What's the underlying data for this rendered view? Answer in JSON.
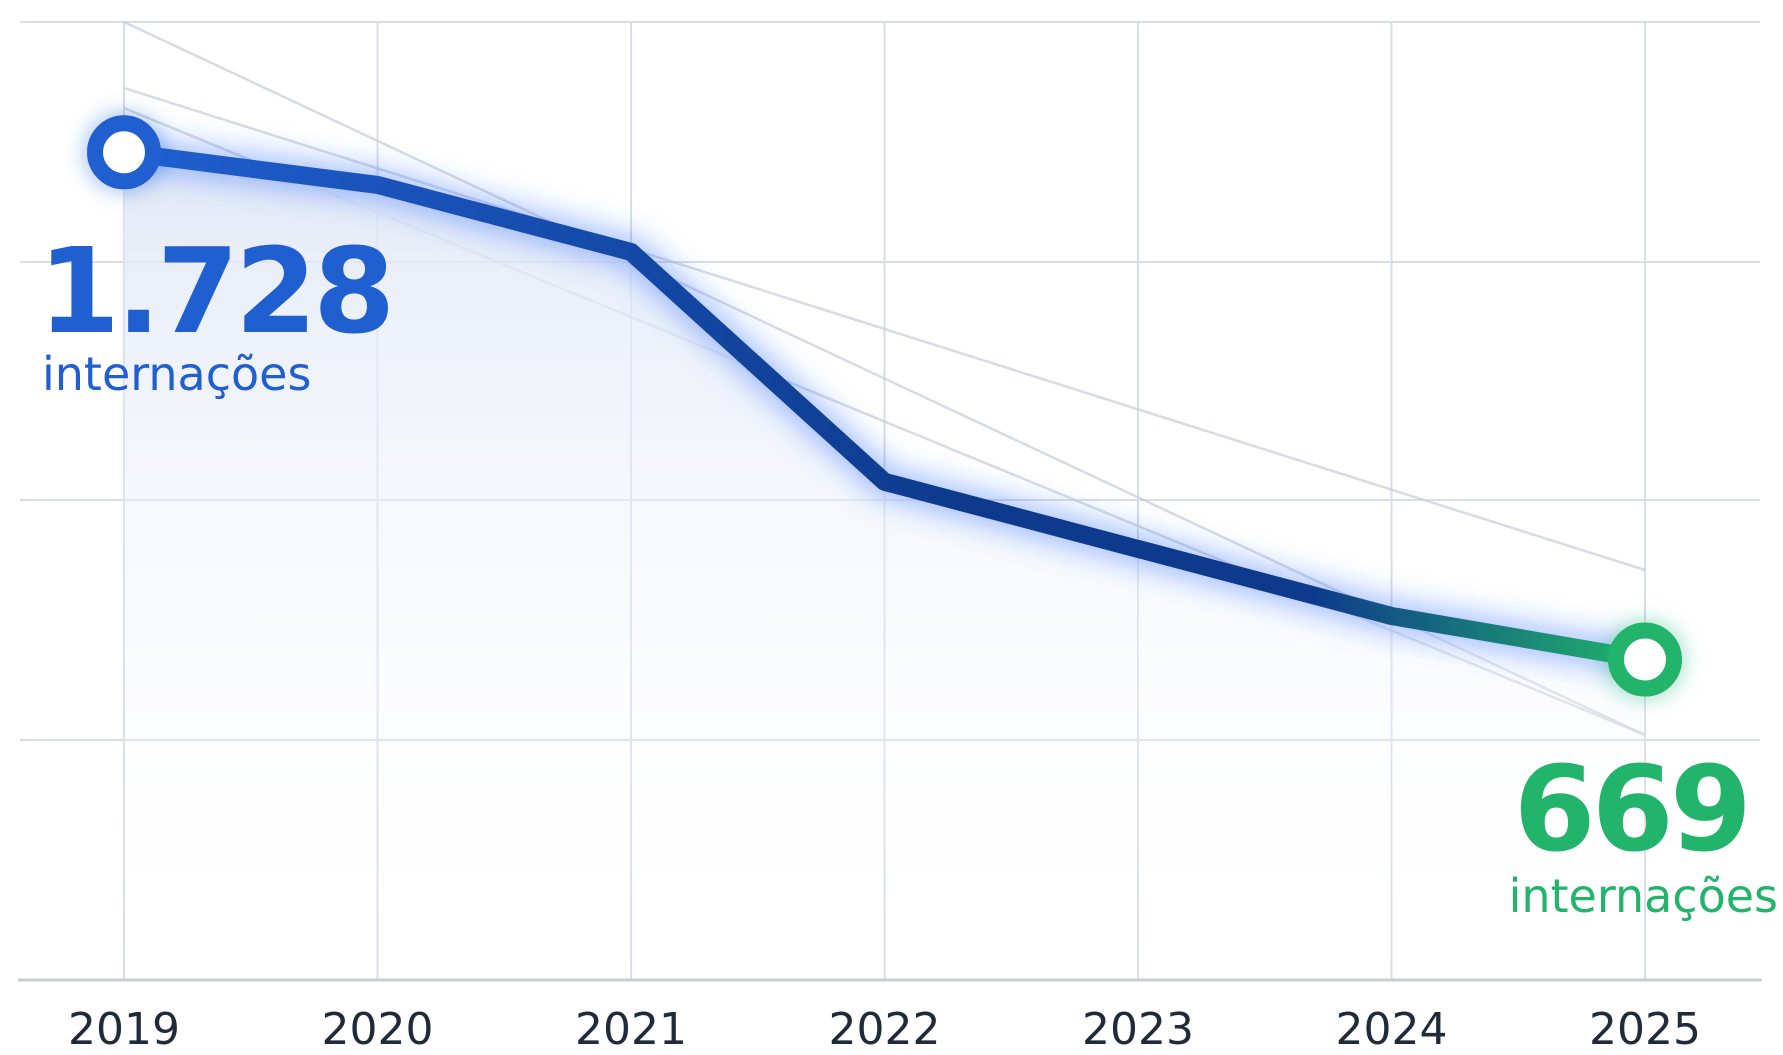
{
  "chart_data": {
    "type": "line",
    "categories": [
      "2019",
      "2020",
      "2021",
      "2022",
      "2023",
      "2024",
      "2025"
    ],
    "series": [
      {
        "values": [
          1728,
          1660,
          1520,
          1040,
          900,
          760,
          669
        ]
      }
    ],
    "ylim": [
      0,
      2000
    ],
    "grid": true,
    "colors": {
      "start": "#1f5fd0",
      "mid": "#0d3a8c",
      "end": "#22b46a",
      "grid": "#d9dde6",
      "axis": "#c9cdd6",
      "trend": "#c7ccda"
    },
    "annotations": {
      "start": {
        "value": "1.728",
        "unit": "internações"
      },
      "end": {
        "value": "669",
        "unit": "internações"
      }
    }
  }
}
